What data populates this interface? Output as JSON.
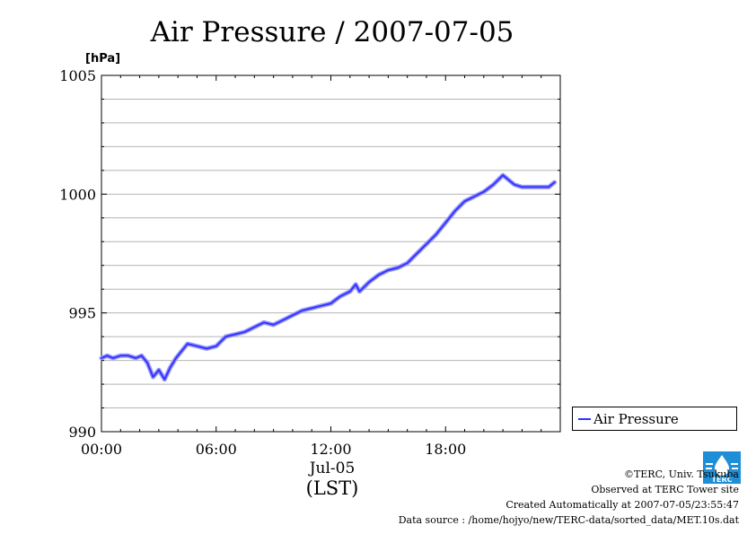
{
  "chart_data": {
    "type": "line",
    "title": "Air Pressure / 2007-07-05",
    "y_unit": "[hPa]",
    "xlabel": "(LST)",
    "date_label": "Jul-05",
    "ylim": [
      990,
      1005
    ],
    "xlim_hours": [
      0,
      24
    ],
    "y_ticks": [
      990,
      995,
      1000,
      1005
    ],
    "y_tick_labels": [
      "990",
      "995",
      "1000",
      "1005"
    ],
    "x_ticks": [
      0,
      6,
      12,
      18
    ],
    "x_tick_labels": [
      "00:00",
      "06:00",
      "12:00",
      "18:00"
    ],
    "grid": true,
    "legend_position": "right-bottom-outside",
    "series": [
      {
        "name": "Air Pressure",
        "color": "#3333ff",
        "x_hours": [
          0.0,
          0.3,
          0.6,
          1.0,
          1.4,
          1.8,
          2.1,
          2.4,
          2.7,
          3.0,
          3.3,
          3.6,
          3.9,
          4.2,
          4.5,
          5.0,
          5.5,
          6.0,
          6.5,
          7.0,
          7.5,
          8.0,
          8.5,
          9.0,
          9.5,
          10.0,
          10.5,
          11.0,
          11.5,
          12.0,
          12.5,
          13.0,
          13.3,
          13.5,
          14.0,
          14.5,
          15.0,
          15.5,
          16.0,
          16.5,
          17.0,
          17.5,
          18.0,
          18.5,
          19.0,
          19.5,
          20.0,
          20.5,
          21.0,
          21.3,
          21.6,
          22.0,
          22.5,
          23.0,
          23.4,
          23.7
        ],
        "values": [
          993.1,
          993.2,
          993.1,
          993.2,
          993.2,
          993.1,
          993.2,
          992.9,
          992.3,
          992.6,
          992.2,
          992.7,
          993.1,
          993.4,
          993.7,
          993.6,
          993.5,
          993.6,
          994.0,
          994.1,
          994.2,
          994.4,
          994.6,
          994.5,
          994.7,
          994.9,
          995.1,
          995.2,
          995.3,
          995.4,
          995.7,
          995.9,
          996.2,
          995.9,
          996.3,
          996.6,
          996.8,
          996.9,
          997.1,
          997.5,
          997.9,
          998.3,
          998.8,
          999.3,
          999.7,
          999.9,
          1000.1,
          1000.4,
          1000.8,
          1000.6,
          1000.4,
          1000.3,
          1000.3,
          1000.3,
          1000.3,
          1000.5
        ]
      }
    ]
  },
  "legend": {
    "label": "Air Pressure"
  },
  "footer": {
    "copyright": "©TERC, Univ. Tsukuba",
    "observed": "Observed at TERC Tower site",
    "created": "Created Automatically at 2007-07-05/23:55:47",
    "source": "Data source : /home/hojyo/new/TERC-data/sorted_data/MET.10s.dat"
  },
  "logo": {
    "text": "TERC",
    "color": "#1e8fd6"
  }
}
